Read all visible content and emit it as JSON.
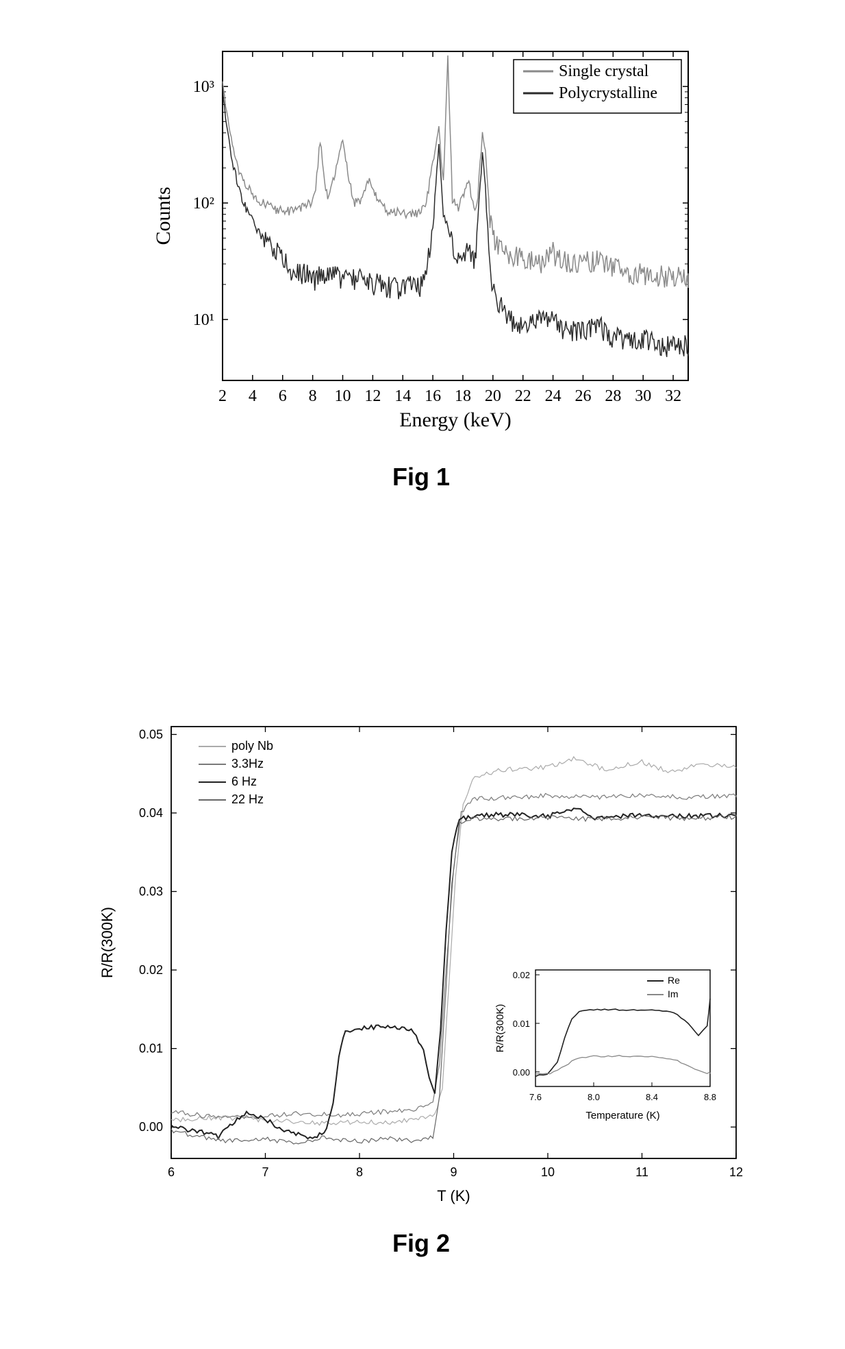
{
  "figure1": {
    "caption": "Fig 1",
    "type": "line",
    "xlabel": "Energy (keV)",
    "ylabel": "Counts",
    "xlabel_fontsize": 30,
    "ylabel_fontsize": 30,
    "tick_fontsize": 24,
    "legend_fontsize": 24,
    "xlim": [
      2,
      33
    ],
    "ylim": [
      3,
      2000
    ],
    "yscale": "log",
    "xticks": [
      2,
      4,
      6,
      8,
      10,
      12,
      14,
      16,
      18,
      20,
      22,
      24,
      26,
      28,
      30,
      32
    ],
    "ylog_ticks": [
      10,
      100,
      1000
    ],
    "ylog_labels": [
      "10¹",
      "10²",
      "10³"
    ],
    "background_color": "#ffffff",
    "axis_color": "#000000",
    "series": [
      {
        "name": "Single crystal",
        "color": "#8a8a8a",
        "line_width": 1.5,
        "points": [
          [
            2,
            1100
          ],
          [
            2.2,
            700
          ],
          [
            2.5,
            400
          ],
          [
            2.8,
            260
          ],
          [
            3.1,
            190
          ],
          [
            3.5,
            150
          ],
          [
            4,
            120
          ],
          [
            4.5,
            105
          ],
          [
            5,
            95
          ],
          [
            5.5,
            88
          ],
          [
            6,
            88
          ],
          [
            6.5,
            85
          ],
          [
            7,
            90
          ],
          [
            7.5,
            92
          ],
          [
            8,
            105
          ],
          [
            8.2,
            130
          ],
          [
            8.5,
            350
          ],
          [
            8.8,
            155
          ],
          [
            9,
            110
          ],
          [
            9.5,
            180
          ],
          [
            10,
            360
          ],
          [
            10.4,
            160
          ],
          [
            10.8,
            100
          ],
          [
            11.3,
            110
          ],
          [
            11.7,
            155
          ],
          [
            12,
            140
          ],
          [
            12.4,
            100
          ],
          [
            13,
            85
          ],
          [
            13.5,
            85
          ],
          [
            14,
            80
          ],
          [
            14.5,
            80
          ],
          [
            15,
            82
          ],
          [
            15.5,
            90
          ],
          [
            16,
            220
          ],
          [
            16.4,
            445
          ],
          [
            16.7,
            150
          ],
          [
            17,
            1750
          ],
          [
            17.3,
            110
          ],
          [
            17.7,
            90
          ],
          [
            18,
            120
          ],
          [
            18.4,
            150
          ],
          [
            18.8,
            80
          ],
          [
            19,
            120
          ],
          [
            19.3,
            400
          ],
          [
            19.5,
            280
          ],
          [
            19.8,
            70
          ],
          [
            20.2,
            45
          ],
          [
            21,
            35
          ],
          [
            22,
            35
          ],
          [
            23,
            30
          ],
          [
            24,
            38
          ],
          [
            25,
            30
          ],
          [
            26,
            32
          ],
          [
            27,
            33
          ],
          [
            28,
            28
          ],
          [
            29,
            26
          ],
          [
            30,
            25
          ],
          [
            31,
            24
          ],
          [
            32,
            24
          ],
          [
            33,
            22
          ]
        ]
      },
      {
        "name": "Polycrystalline",
        "color": "#2b2b2b",
        "line_width": 1.5,
        "points": [
          [
            2,
            950
          ],
          [
            2.2,
            550
          ],
          [
            2.5,
            300
          ],
          [
            2.8,
            190
          ],
          [
            3.1,
            130
          ],
          [
            3.5,
            95
          ],
          [
            4,
            70
          ],
          [
            4.5,
            55
          ],
          [
            5,
            45
          ],
          [
            5.5,
            40
          ],
          [
            6,
            33
          ],
          [
            6.5,
            28
          ],
          [
            7,
            25
          ],
          [
            7.5,
            26
          ],
          [
            8,
            22
          ],
          [
            8.5,
            24
          ],
          [
            9,
            23
          ],
          [
            9.5,
            25
          ],
          [
            10,
            22
          ],
          [
            10.5,
            24
          ],
          [
            11,
            22
          ],
          [
            11.5,
            23
          ],
          [
            12,
            20
          ],
          [
            12.5,
            21
          ],
          [
            13,
            19
          ],
          [
            13.5,
            20
          ],
          [
            14,
            18
          ],
          [
            14.5,
            20
          ],
          [
            15,
            19
          ],
          [
            15.5,
            22
          ],
          [
            16,
            60
          ],
          [
            16.4,
            330
          ],
          [
            16.7,
            78
          ],
          [
            17,
            70
          ],
          [
            17.3,
            45
          ],
          [
            17.7,
            35
          ],
          [
            18,
            38
          ],
          [
            18.4,
            42
          ],
          [
            18.8,
            33
          ],
          [
            19,
            70
          ],
          [
            19.3,
            280
          ],
          [
            19.5,
            140
          ],
          [
            19.8,
            25
          ],
          [
            20.2,
            16
          ],
          [
            20.7,
            12
          ],
          [
            21.3,
            10
          ],
          [
            22,
            9
          ],
          [
            23,
            10
          ],
          [
            24,
            10
          ],
          [
            25,
            8
          ],
          [
            26,
            8
          ],
          [
            27,
            9
          ],
          [
            28,
            7
          ],
          [
            29,
            7
          ],
          [
            30,
            7
          ],
          [
            31,
            6
          ],
          [
            32,
            6
          ],
          [
            33,
            6
          ]
        ]
      }
    ]
  },
  "figure2": {
    "caption": "Fig 2",
    "type": "line",
    "xlabel": "T (K)",
    "ylabel": "R/R(300K)",
    "xlabel_fontsize": 22,
    "ylabel_fontsize": 22,
    "tick_fontsize": 18,
    "legend_fontsize": 18,
    "xlim": [
      6,
      12
    ],
    "ylim": [
      -0.004,
      0.051
    ],
    "xticks": [
      6,
      7,
      8,
      9,
      10,
      11,
      12
    ],
    "yticks": [
      0.0,
      0.01,
      0.02,
      0.03,
      0.04,
      0.05
    ],
    "ytick_labels": [
      "0.00",
      "0.01",
      "0.02",
      "0.03",
      "0.04",
      "0.05"
    ],
    "background_color": "#ffffff",
    "axis_color": "#000000",
    "series": [
      {
        "name": "poly Nb",
        "color": "#aaaaaa",
        "line_width": 1.2,
        "points": [
          [
            6,
            0.0008
          ],
          [
            6.4,
            0.0012
          ],
          [
            6.8,
            0.001
          ],
          [
            7.2,
            0.0008
          ],
          [
            7.6,
            0.0005
          ],
          [
            8.0,
            0.0006
          ],
          [
            8.3,
            0.0006
          ],
          [
            8.6,
            0.0009
          ],
          [
            8.8,
            0.0015
          ],
          [
            8.88,
            0.005
          ],
          [
            8.95,
            0.018
          ],
          [
            9.02,
            0.032
          ],
          [
            9.1,
            0.041
          ],
          [
            9.2,
            0.0445
          ],
          [
            9.5,
            0.0455
          ],
          [
            10,
            0.0458
          ],
          [
            10.3,
            0.047
          ],
          [
            10.6,
            0.0455
          ],
          [
            11,
            0.0465
          ],
          [
            11.3,
            0.0452
          ],
          [
            11.6,
            0.0462
          ],
          [
            12,
            0.046
          ]
        ]
      },
      {
        "name": "3.3Hz",
        "color": "#7a7a7a",
        "line_width": 1.2,
        "points": [
          [
            6,
            0.002
          ],
          [
            6.3,
            0.0015
          ],
          [
            6.7,
            0.0012
          ],
          [
            7.0,
            0.0014
          ],
          [
            7.4,
            0.0018
          ],
          [
            7.7,
            0.0015
          ],
          [
            8.0,
            0.0017
          ],
          [
            8.3,
            0.002
          ],
          [
            8.6,
            0.0023
          ],
          [
            8.78,
            0.003
          ],
          [
            8.85,
            0.008
          ],
          [
            8.92,
            0.02
          ],
          [
            9.0,
            0.033
          ],
          [
            9.08,
            0.04
          ],
          [
            9.2,
            0.0418
          ],
          [
            9.6,
            0.042
          ],
          [
            10,
            0.0422
          ],
          [
            10.5,
            0.042
          ],
          [
            11,
            0.0423
          ],
          [
            11.5,
            0.042
          ],
          [
            12,
            0.0423
          ]
        ]
      },
      {
        "name": "6 Hz",
        "color": "#222222",
        "line_width": 2.0,
        "points": [
          [
            6,
            0.0
          ],
          [
            6.3,
            -0.0006
          ],
          [
            6.5,
            -0.0012
          ],
          [
            6.8,
            0.002
          ],
          [
            7.0,
            0.001
          ],
          [
            7.2,
            -0.0005
          ],
          [
            7.5,
            -0.0015
          ],
          [
            7.65,
            -0.0003
          ],
          [
            7.72,
            0.003
          ],
          [
            7.78,
            0.009
          ],
          [
            7.85,
            0.0122
          ],
          [
            8.0,
            0.0126
          ],
          [
            8.2,
            0.0128
          ],
          [
            8.4,
            0.0127
          ],
          [
            8.55,
            0.0124
          ],
          [
            8.68,
            0.01
          ],
          [
            8.74,
            0.006
          ],
          [
            8.8,
            0.004
          ],
          [
            8.86,
            0.012
          ],
          [
            8.92,
            0.025
          ],
          [
            8.98,
            0.035
          ],
          [
            9.06,
            0.0392
          ],
          [
            9.2,
            0.0396
          ],
          [
            9.5,
            0.0398
          ],
          [
            10,
            0.0396
          ],
          [
            10.3,
            0.0405
          ],
          [
            10.5,
            0.0394
          ],
          [
            11,
            0.0397
          ],
          [
            11.5,
            0.0396
          ],
          [
            12,
            0.0397
          ]
        ]
      },
      {
        "name": "22 Hz",
        "color": "#666666",
        "line_width": 1.2,
        "points": [
          [
            6,
            -0.0005
          ],
          [
            6.3,
            -0.0012
          ],
          [
            6.6,
            -0.0018
          ],
          [
            7.0,
            -0.0015
          ],
          [
            7.3,
            -0.002
          ],
          [
            7.6,
            -0.0014
          ],
          [
            8.0,
            -0.0018
          ],
          [
            8.3,
            -0.0015
          ],
          [
            8.6,
            -0.0018
          ],
          [
            8.78,
            -0.0012
          ],
          [
            8.85,
            0.004
          ],
          [
            8.92,
            0.018
          ],
          [
            8.98,
            0.031
          ],
          [
            9.06,
            0.0388
          ],
          [
            9.2,
            0.0392
          ],
          [
            9.6,
            0.0393
          ],
          [
            10,
            0.0394
          ],
          [
            10.5,
            0.0392
          ],
          [
            11,
            0.0395
          ],
          [
            11.5,
            0.0393
          ],
          [
            12,
            0.0395
          ]
        ]
      }
    ],
    "inset": {
      "xlabel": "Temperature (K)",
      "ylabel": "R/R(300K)",
      "xlabel_fontsize": 15,
      "ylabel_fontsize": 15,
      "tick_fontsize": 13,
      "legend_fontsize": 14,
      "xlim": [
        7.6,
        8.8
      ],
      "ylim": [
        -0.003,
        0.021
      ],
      "xticks": [
        7.6,
        8.0,
        8.4,
        8.8
      ],
      "yticks": [
        0.0,
        0.01,
        0.02
      ],
      "ytick_labels": [
        "0.00",
        "0.01",
        "0.02"
      ],
      "series": [
        {
          "name": "Re",
          "color": "#222222",
          "line_width": 1.6,
          "points": [
            [
              7.6,
              -0.0008
            ],
            [
              7.68,
              -0.0006
            ],
            [
              7.75,
              0.002
            ],
            [
              7.8,
              0.007
            ],
            [
              7.85,
              0.011
            ],
            [
              7.9,
              0.0125
            ],
            [
              8.0,
              0.0128
            ],
            [
              8.2,
              0.0128
            ],
            [
              8.4,
              0.0127
            ],
            [
              8.55,
              0.0122
            ],
            [
              8.65,
              0.01
            ],
            [
              8.72,
              0.0075
            ],
            [
              8.78,
              0.0095
            ],
            [
              8.8,
              0.015
            ]
          ]
        },
        {
          "name": "Im",
          "color": "#888888",
          "line_width": 1.3,
          "points": [
            [
              7.6,
              -0.0005
            ],
            [
              7.7,
              -0.0003
            ],
            [
              7.78,
              0.0008
            ],
            [
              7.85,
              0.0022
            ],
            [
              7.92,
              0.003
            ],
            [
              8.0,
              0.0032
            ],
            [
              8.2,
              0.0033
            ],
            [
              8.4,
              0.0031
            ],
            [
              8.55,
              0.0026
            ],
            [
              8.65,
              0.0012
            ],
            [
              8.72,
              0.0003
            ],
            [
              8.78,
              -0.0002
            ],
            [
              8.8,
              -0.0003
            ]
          ]
        }
      ]
    }
  }
}
